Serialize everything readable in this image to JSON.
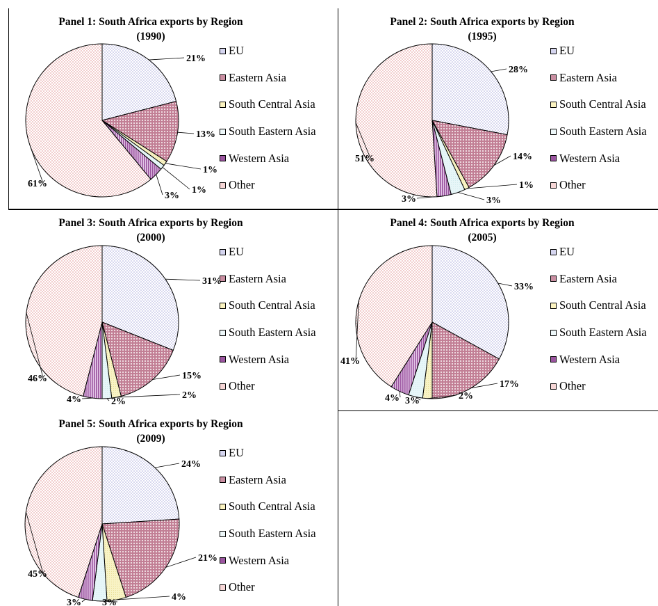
{
  "categories": [
    "EU",
    "Eastern Asia",
    "South Central Asia",
    "South Eastern Asia",
    "Western Asia",
    "Other"
  ],
  "colors": {
    "EU": "#dcdcf2",
    "Eastern Asia": "#c27f95",
    "South Central Asia": "#f8f3c5",
    "South Eastern Asia": "#e7f6f8",
    "Western Asia": "#9b55a0",
    "Other": "#f4d4d4"
  },
  "chart_data": [
    {
      "type": "pie",
      "title": "Panel 1: South Africa exports by Region",
      "subtitle": "(1990)",
      "categories": [
        "EU",
        "Eastern Asia",
        "South Central Asia",
        "South Eastern Asia",
        "Western Asia",
        "Other"
      ],
      "values": [
        21,
        13,
        1,
        1,
        3,
        61
      ],
      "labels": [
        "21%",
        "13%",
        "1%",
        "1%",
        "3%",
        "61%"
      ],
      "legend": [
        "EU",
        "Eastern Asia",
        "South Central Asia",
        "South Eastern Asia",
        "Western Asia",
        "Other"
      ],
      "legend_position": "right"
    },
    {
      "type": "pie",
      "title": "Panel 2: South Africa exports by Region",
      "subtitle": "(1995)",
      "categories": [
        "EU",
        "Eastern Asia",
        "South Central Asia",
        "South Eastern Asia",
        "Western Asia",
        "Other"
      ],
      "values": [
        28,
        14,
        1,
        3,
        3,
        51
      ],
      "labels": [
        "28%",
        "14%",
        "1%",
        "3%",
        "3%",
        "51%"
      ],
      "legend": [
        "EU",
        "Eastern Asia",
        "South Central Asia",
        "South Eastern Asia",
        "Western Asia",
        "Other"
      ],
      "legend_position": "right"
    },
    {
      "type": "pie",
      "title": "Panel 3: South Africa exports by Region",
      "subtitle": "(2000)",
      "categories": [
        "EU",
        "Eastern Asia",
        "South Central Asia",
        "South Eastern Asia",
        "Western Asia",
        "Other"
      ],
      "values": [
        31,
        15,
        2,
        2,
        4,
        46
      ],
      "labels": [
        "31%",
        "15%",
        "2%",
        "2%",
        "4%",
        "46%"
      ],
      "legend": [
        "EU",
        "Eastern Asia",
        "South Central Asia",
        "South Eastern Asia",
        "Western Asia",
        "Other"
      ],
      "legend_position": "right"
    },
    {
      "type": "pie",
      "title": "Panel 4: South Africa exports by Region",
      "subtitle": "(2005)",
      "categories": [
        "EU",
        "Eastern Asia",
        "South Central Asia",
        "South Eastern Asia",
        "Western Asia",
        "Other"
      ],
      "values": [
        33,
        17,
        2,
        3,
        4,
        41
      ],
      "labels": [
        "33%",
        "17%",
        "2%",
        "3%",
        "4%",
        "41%"
      ],
      "legend": [
        "EU",
        "Eastern Asia",
        "South Central Asia",
        "South Eastern Asia",
        "Western Asia",
        "Other"
      ],
      "legend_position": "right"
    },
    {
      "type": "pie",
      "title": "Panel 5: South Africa exports by Region",
      "subtitle": "(2009)",
      "categories": [
        "EU",
        "Eastern Asia",
        "South Central Asia",
        "South Eastern Asia",
        "Western Asia",
        "Other"
      ],
      "values": [
        24,
        21,
        4,
        3,
        3,
        45
      ],
      "labels": [
        "24%",
        "21%",
        "4%",
        "3%",
        "3%",
        "45%"
      ],
      "legend": [
        "EU",
        "Eastern Asia",
        "South Central Asia",
        "South Eastern Asia",
        "Western Asia",
        "Other"
      ],
      "legend_position": "right"
    }
  ]
}
